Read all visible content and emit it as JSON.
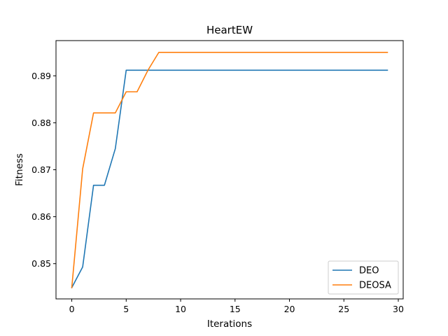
{
  "chart_data": {
    "type": "line",
    "title": "HeartEW",
    "xlabel": "Iterations",
    "ylabel": "Fitness",
    "xlim": [
      -1.45,
      30.45
    ],
    "ylim": [
      0.8425,
      0.8975
    ],
    "xticks": [
      0,
      5,
      10,
      15,
      20,
      25,
      30
    ],
    "yticks": [
      0.85,
      0.86,
      0.87,
      0.88,
      0.89
    ],
    "xtick_labels": [
      "0",
      "5",
      "10",
      "15",
      "20",
      "25",
      "30"
    ],
    "ytick_labels": [
      "0.85",
      "0.86",
      "0.87",
      "0.88",
      "0.89"
    ],
    "grid": false,
    "legend_position": "lower-right",
    "x": [
      0,
      1,
      2,
      3,
      4,
      5,
      6,
      7,
      8,
      9,
      10,
      11,
      12,
      13,
      14,
      15,
      16,
      17,
      18,
      19,
      20,
      21,
      22,
      23,
      24,
      25,
      26,
      27,
      28,
      29
    ],
    "series": [
      {
        "name": "DEO",
        "color": "#1f77b4",
        "values": [
          0.8449,
          0.8493,
          0.8667,
          0.8667,
          0.8745,
          0.8912,
          0.8912,
          0.8912,
          0.8912,
          0.8912,
          0.8912,
          0.8912,
          0.8912,
          0.8912,
          0.8912,
          0.8912,
          0.8912,
          0.8912,
          0.8912,
          0.8912,
          0.8912,
          0.8912,
          0.8912,
          0.8912,
          0.8912,
          0.8912,
          0.8912,
          0.8912,
          0.8912,
          0.8912
        ]
      },
      {
        "name": "DEOSA",
        "color": "#ff7f0e",
        "values": [
          0.8449,
          0.8702,
          0.8821,
          0.8821,
          0.8821,
          0.8866,
          0.8866,
          0.8912,
          0.895,
          0.895,
          0.895,
          0.895,
          0.895,
          0.895,
          0.895,
          0.895,
          0.895,
          0.895,
          0.895,
          0.895,
          0.895,
          0.895,
          0.895,
          0.895,
          0.895,
          0.895,
          0.895,
          0.895,
          0.895,
          0.895
        ]
      }
    ]
  }
}
